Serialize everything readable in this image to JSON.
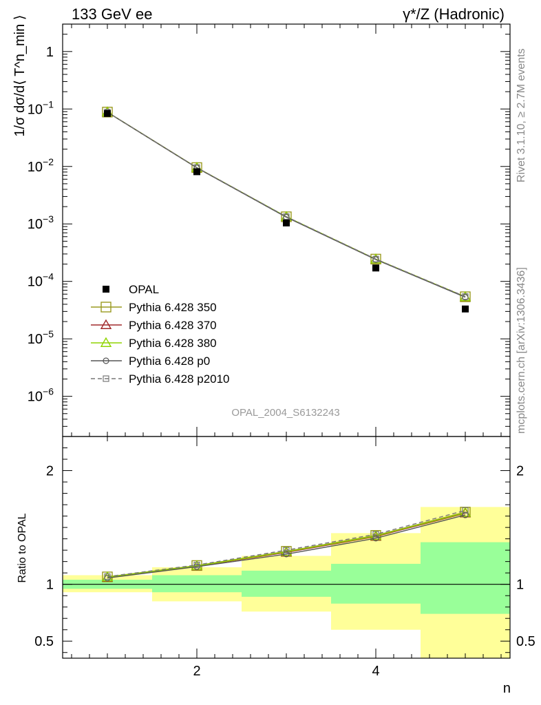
{
  "header": {
    "left": "133 GeV ee",
    "right": "γ*/Z (Hadronic)"
  },
  "side_labels": {
    "rivet": "Rivet 3.1.10, ≥ 2.7M events",
    "mcplots": "mcplots.cern.ch [arXiv:1306.3436]"
  },
  "analysis_id": "OPAL_2004_S6132243",
  "chart_data": [
    {
      "type": "line",
      "panel": "main",
      "ylabel": "1/σ dσ/d⟨ T^n_min ⟩",
      "xlabel": "n",
      "yscale": "log",
      "xlim": [
        0.5,
        5.5
      ],
      "ylim": [
        2e-07,
        3
      ],
      "yticks": [
        1,
        0.1,
        0.01,
        0.001,
        0.0001,
        1e-05,
        1e-06
      ],
      "ytick_labels": [
        {
          "base": "1",
          "exp": ""
        },
        {
          "base": "10",
          "exp": "−1"
        },
        {
          "base": "10",
          "exp": "−2"
        },
        {
          "base": "10",
          "exp": "−3"
        },
        {
          "base": "10",
          "exp": "−4"
        },
        {
          "base": "10",
          "exp": "−5"
        },
        {
          "base": "10",
          "exp": "−6"
        }
      ],
      "x": [
        1,
        2,
        3,
        4,
        5
      ],
      "data_series": {
        "name": "OPAL",
        "marker": "filled-square",
        "color": "#000000",
        "values": [
          0.0835,
          0.0081,
          0.00104,
          0.000171,
          3.31e-05
        ]
      },
      "series": [
        {
          "name": "Pythia 6.428 350",
          "marker": "open-square",
          "color": "#9a9a1f",
          "dash": "",
          "values": [
            0.0883,
            0.00955,
            0.00133,
            0.000244,
            5.4e-05
          ]
        },
        {
          "name": "Pythia 6.428 370",
          "marker": "open-triangle",
          "color": "#a0282a",
          "dash": "",
          "values": [
            0.088,
            0.0095,
            0.00132,
            0.000242,
            5.35e-05
          ]
        },
        {
          "name": "Pythia 6.428 380",
          "marker": "open-triangle",
          "color": "#8fd400",
          "dash": "",
          "values": [
            0.0882,
            0.00952,
            0.00133,
            0.000243,
            5.37e-05
          ]
        },
        {
          "name": "Pythia 6.428 p0",
          "marker": "open-circle",
          "color": "#555555",
          "dash": "",
          "values": [
            0.0879,
            0.00945,
            0.00131,
            0.00024,
            5.3e-05
          ]
        },
        {
          "name": "Pythia 6.428 p2010",
          "marker": "open-square-small",
          "color": "#777777",
          "dash": "6,4",
          "values": [
            0.0884,
            0.00958,
            0.00134,
            0.000245,
            5.45e-05
          ]
        }
      ],
      "legend_position": "bottom-left"
    },
    {
      "type": "line",
      "panel": "ratio",
      "ylabel": "Ratio to OPAL",
      "xlabel": "n",
      "xlim": [
        0.5,
        5.5
      ],
      "ylim": [
        0.35,
        2.3
      ],
      "yticks": [
        0.5,
        1,
        2
      ],
      "ytick_labels": [
        "0.5",
        "1",
        "2"
      ],
      "xticks": [
        2,
        4
      ],
      "xtick_labels": [
        "2",
        "4"
      ],
      "x": [
        1,
        2,
        3,
        4,
        5
      ],
      "bins": [
        [
          0.5,
          1.5
        ],
        [
          1.5,
          2.5
        ],
        [
          2.5,
          3.5
        ],
        [
          3.5,
          4.5
        ],
        [
          4.5,
          5.5
        ]
      ],
      "stat_band": {
        "color": "#99ff99",
        "low": [
          0.96,
          0.93,
          0.89,
          0.83,
          0.74
        ],
        "high": [
          1.04,
          1.08,
          1.12,
          1.18,
          1.37
        ]
      },
      "total_band": {
        "color": "#ffff99",
        "low": [
          0.93,
          0.85,
          0.76,
          0.6,
          0.35
        ],
        "high": [
          1.08,
          1.15,
          1.25,
          1.45,
          1.68
        ]
      },
      "series": [
        {
          "name": "Pythia 6.428 350",
          "marker": "open-square",
          "color": "#9a9a1f",
          "dash": "",
          "values": [
            1.065,
            1.165,
            1.29,
            1.43,
            1.635
          ]
        },
        {
          "name": "Pythia 6.428 370",
          "marker": "open-triangle",
          "color": "#a0282a",
          "dash": "",
          "values": [
            1.06,
            1.16,
            1.28,
            1.42,
            1.625
          ]
        },
        {
          "name": "Pythia 6.428 380",
          "marker": "open-triangle",
          "color": "#8fd400",
          "dash": "",
          "values": [
            1.063,
            1.162,
            1.285,
            1.425,
            1.63
          ]
        },
        {
          "name": "Pythia 6.428 p0",
          "marker": "open-circle",
          "color": "#555555",
          "dash": "",
          "values": [
            1.055,
            1.155,
            1.265,
            1.405,
            1.61
          ]
        },
        {
          "name": "Pythia 6.428 p2010",
          "marker": "open-square-small",
          "color": "#777777",
          "dash": "6,4",
          "values": [
            1.068,
            1.17,
            1.3,
            1.44,
            1.65
          ]
        }
      ]
    }
  ]
}
